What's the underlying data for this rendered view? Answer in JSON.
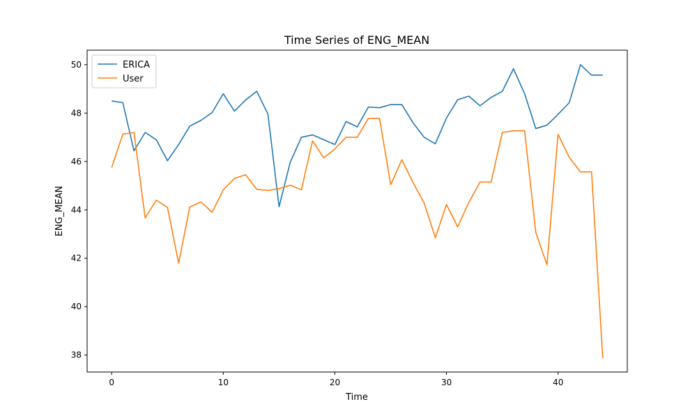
{
  "chart_data": {
    "type": "line",
    "title": "Time Series of ENG_MEAN",
    "xlabel": "Time",
    "ylabel": "ENG_MEAN",
    "xlim": [
      -2.2,
      46.2
    ],
    "ylim": [
      37.3,
      50.6
    ],
    "xticks": [
      0,
      10,
      20,
      30,
      40
    ],
    "yticks": [
      38,
      40,
      42,
      44,
      46,
      48,
      50
    ],
    "grid": false,
    "legend_position": "top-left",
    "x": [
      0,
      1,
      2,
      3,
      4,
      5,
      6,
      7,
      8,
      9,
      10,
      11,
      12,
      13,
      14,
      15,
      16,
      17,
      18,
      19,
      20,
      21,
      22,
      23,
      24,
      25,
      26,
      27,
      28,
      29,
      30,
      31,
      32,
      33,
      34,
      35,
      36,
      37,
      38,
      39,
      40,
      41,
      42,
      43,
      44
    ],
    "series": [
      {
        "name": "ERICA",
        "color": "#1f77b4",
        "values": [
          48.5,
          48.43,
          46.44,
          47.2,
          46.9,
          46.03,
          46.7,
          47.46,
          47.7,
          48.02,
          48.8,
          48.08,
          48.54,
          48.9,
          47.96,
          44.13,
          45.97,
          47.0,
          47.1,
          46.9,
          46.7,
          47.65,
          47.43,
          48.25,
          48.22,
          48.35,
          48.35,
          47.6,
          47.0,
          46.73,
          47.8,
          48.55,
          48.7,
          48.3,
          48.65,
          48.9,
          49.83,
          48.8,
          47.36,
          47.5,
          47.95,
          48.43,
          50.0,
          49.57,
          49.57
        ]
      },
      {
        "name": "User",
        "color": "#ff7f0e",
        "values": [
          45.75,
          47.13,
          47.2,
          43.67,
          44.4,
          44.1,
          41.8,
          44.12,
          44.33,
          43.9,
          44.83,
          45.3,
          45.45,
          44.85,
          44.8,
          44.88,
          45.02,
          44.83,
          46.85,
          46.15,
          46.52,
          47.0,
          47.0,
          47.78,
          47.78,
          45.04,
          46.07,
          45.13,
          44.28,
          42.85,
          44.22,
          43.3,
          44.3,
          45.15,
          45.15,
          47.2,
          47.27,
          47.27,
          43.07,
          41.73,
          47.12,
          46.17,
          45.57,
          45.57,
          37.87
        ]
      }
    ]
  }
}
